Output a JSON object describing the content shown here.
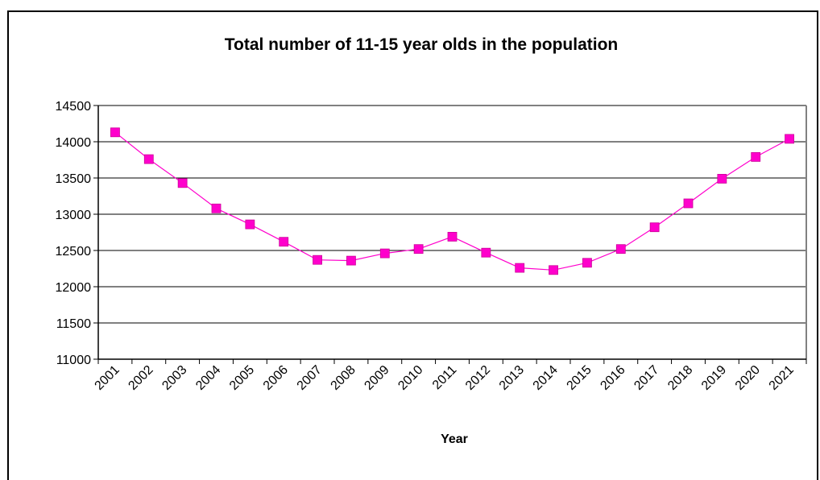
{
  "chart_data": {
    "type": "line",
    "title": "Total number of 11-15 year olds in the population",
    "xlabel": "Year",
    "ylabel": "",
    "categories": [
      "2001",
      "2002",
      "2003",
      "2004",
      "2005",
      "2006",
      "2007",
      "2008",
      "2009",
      "2010",
      "2011",
      "2012",
      "2013",
      "2014",
      "2015",
      "2016",
      "2017",
      "2018",
      "2019",
      "2020",
      "2021"
    ],
    "series": [
      {
        "values": [
          14130,
          13760,
          13430,
          13080,
          12860,
          12620,
          12370,
          12360,
          12460,
          12520,
          12690,
          12470,
          12260,
          12230,
          12330,
          12520,
          12820,
          13150,
          13490,
          13790,
          14040
        ]
      }
    ],
    "ylim": [
      11000,
      14500
    ],
    "yticks": [
      11000,
      11500,
      12000,
      12500,
      13000,
      13500,
      14000,
      14500
    ],
    "grid": true,
    "legend": "none",
    "colors": {
      "series": "#ff00cc",
      "marker": "#ff00cc",
      "grid": "#000000",
      "plot_border": "#808080"
    }
  }
}
